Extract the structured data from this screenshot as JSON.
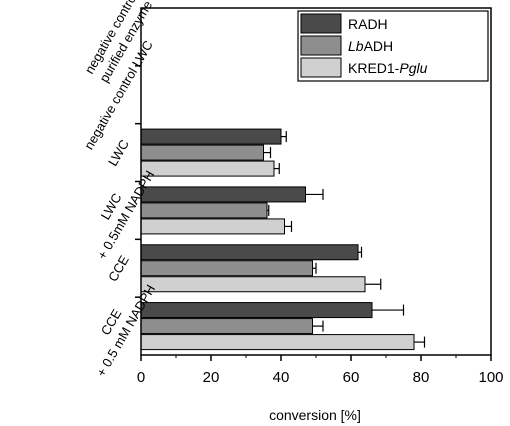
{
  "chart_data": {
    "type": "bar",
    "orientation": "horizontal",
    "xlabel": "conversion [%]",
    "xlim": [
      0,
      100
    ],
    "xticks": [
      "0",
      "20",
      "40",
      "60",
      "80",
      "100"
    ],
    "categories": [
      [
        "negative control",
        "purified enzyme"
      ],
      [
        "negative control LWC"
      ],
      [
        "LWC"
      ],
      [
        "LWC",
        "+ 0.5mM NADPH"
      ],
      [
        "CCE"
      ],
      [
        "CCE",
        "+ 0.5 mM NADPH"
      ]
    ],
    "series": [
      {
        "name": "RADH",
        "name_parts": [
          {
            "text": "RADH",
            "italic": false
          }
        ],
        "color": "#4a4a4a",
        "values": [
          0,
          0,
          40,
          47,
          62,
          66
        ],
        "errors": [
          0,
          0,
          1.5,
          5,
          1,
          9
        ]
      },
      {
        "name": "LbADH",
        "name_parts": [
          {
            "text": "Lb",
            "italic": true
          },
          {
            "text": "ADH",
            "italic": false
          }
        ],
        "color": "#8e8e8e",
        "values": [
          0,
          0,
          35,
          36,
          49,
          49
        ],
        "errors": [
          0,
          0,
          2,
          0.5,
          1,
          3
        ]
      },
      {
        "name": "KRED1-Pglu",
        "name_parts": [
          {
            "text": "KRED1-",
            "italic": false
          },
          {
            "text": "Pglu",
            "italic": true
          }
        ],
        "color": "#d0d0d0",
        "values": [
          0,
          0,
          38,
          41,
          64,
          78
        ],
        "errors": [
          0,
          0,
          1.5,
          2,
          4.5,
          3
        ]
      }
    ],
    "legend_position": "top-right",
    "grid": false
  }
}
